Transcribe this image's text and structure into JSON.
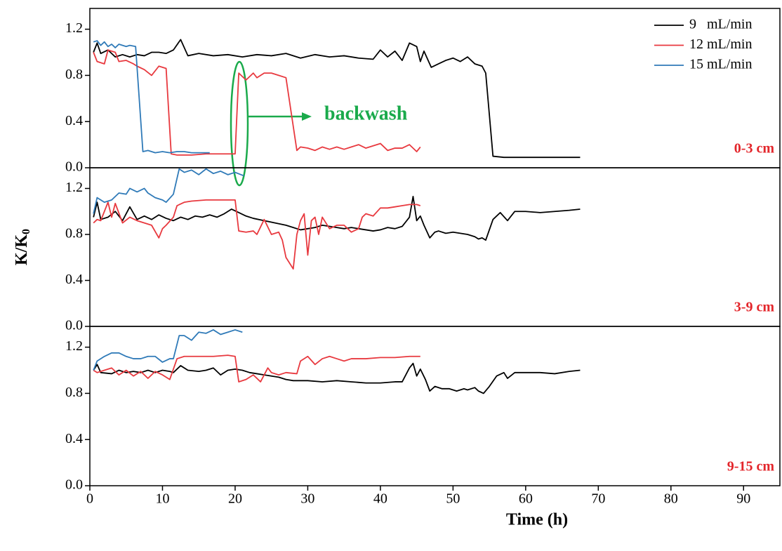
{
  "shared_axes": {
    "xlabel": "Time (h)",
    "ylabel": {
      "text": "K/K",
      "subscript": "0"
    },
    "xlim": [
      0,
      95
    ],
    "xticks": [
      0,
      10,
      20,
      30,
      40,
      50,
      60,
      70,
      80,
      90
    ]
  },
  "chart_data": [
    {
      "type": "line",
      "panel_label": "0-3 cm",
      "annotation": "backwash",
      "legend": "top-right",
      "ylim": [
        0,
        1.38
      ],
      "yticks": [
        {
          "value": 0,
          "label": "0.0"
        },
        {
          "value": 0.4,
          "label": "0.4"
        },
        {
          "value": 0.8,
          "label": "0.8"
        },
        {
          "value": 1.2,
          "label": "1.2"
        }
      ],
      "series": [
        {
          "name": "9   mL/min",
          "color": "#000000",
          "x": [
            0.5,
            1,
            1.5,
            2.5,
            3.5,
            4.5,
            5.5,
            6.5,
            7.5,
            8.5,
            9.5,
            10.5,
            11.5,
            12.5,
            13.5,
            15,
            17,
            19,
            21,
            23,
            25,
            27,
            29,
            31,
            33,
            35,
            37,
            39,
            40,
            41,
            42,
            43,
            44,
            45,
            45.5,
            46,
            47,
            48,
            49,
            50,
            51,
            52,
            53,
            54,
            54.5,
            55.5,
            57,
            59,
            61,
            63,
            65,
            67.5
          ],
          "values": [
            1.0,
            1.08,
            0.99,
            1.02,
            0.96,
            0.98,
            0.96,
            0.98,
            0.97,
            1.0,
            1.0,
            0.99,
            1.02,
            1.11,
            0.97,
            0.99,
            0.97,
            0.98,
            0.96,
            0.98,
            0.97,
            0.99,
            0.95,
            0.98,
            0.96,
            0.97,
            0.95,
            0.94,
            1.02,
            0.96,
            1.01,
            0.93,
            1.08,
            1.05,
            0.92,
            1.01,
            0.87,
            0.9,
            0.93,
            0.95,
            0.92,
            0.96,
            0.9,
            0.88,
            0.82,
            0.1,
            0.09,
            0.09,
            0.09,
            0.09,
            0.09,
            0.09
          ]
        },
        {
          "name": "12 mL/min",
          "color": "#e8393f",
          "x": [
            0.5,
            1,
            2,
            2.5,
            3.5,
            4,
            5,
            6,
            6.5,
            7.5,
            8.5,
            9.5,
            10.5,
            11.2,
            12,
            14,
            16,
            18,
            20,
            20.5,
            21.5,
            22.5,
            23,
            24,
            25,
            26,
            27,
            28.5,
            29,
            30,
            31,
            32,
            33,
            34,
            35,
            36,
            37,
            38,
            39,
            40,
            41,
            42,
            43,
            44,
            45,
            45.5
          ],
          "values": [
            1.0,
            0.92,
            0.9,
            1.02,
            1.0,
            0.92,
            0.93,
            0.9,
            0.88,
            0.85,
            0.8,
            0.88,
            0.86,
            0.12,
            0.11,
            0.11,
            0.12,
            0.12,
            0.12,
            0.82,
            0.76,
            0.82,
            0.78,
            0.82,
            0.82,
            0.8,
            0.78,
            0.15,
            0.18,
            0.17,
            0.15,
            0.18,
            0.16,
            0.18,
            0.16,
            0.18,
            0.2,
            0.17,
            0.19,
            0.21,
            0.15,
            0.17,
            0.17,
            0.2,
            0.14,
            0.18
          ]
        },
        {
          "name": "15 mL/min",
          "color": "#2f7ab8",
          "x": [
            0.5,
            1,
            1.5,
            2,
            2.5,
            3,
            3.5,
            4,
            5,
            5.5,
            6.3,
            7.3,
            8,
            9,
            10,
            11,
            12,
            13,
            14,
            15,
            16.5
          ],
          "values": [
            1.09,
            1.1,
            1.06,
            1.09,
            1.05,
            1.07,
            1.04,
            1.07,
            1.05,
            1.06,
            1.05,
            0.14,
            0.15,
            0.13,
            0.14,
            0.13,
            0.14,
            0.14,
            0.13,
            0.13,
            0.13
          ]
        }
      ]
    },
    {
      "type": "line",
      "panel_label": "3-9 cm",
      "ylim": [
        0,
        1.38
      ],
      "yticks": [
        {
          "value": 0,
          "label": "0.0"
        },
        {
          "value": 0.4,
          "label": "0.4"
        },
        {
          "value": 0.8,
          "label": "0.8"
        },
        {
          "value": 1.2,
          "label": "1.2"
        }
      ],
      "series": [
        {
          "name": "9   mL/min",
          "color": "#000000",
          "x": [
            0.5,
            1,
            1.5,
            2.5,
            3.5,
            4.5,
            5.5,
            6.5,
            7.5,
            8.5,
            9.5,
            10.5,
            11.5,
            12.5,
            13.5,
            14.5,
            15.5,
            16.5,
            17.5,
            18.5,
            19.5,
            20.5,
            21.5,
            22.5,
            24,
            25.5,
            27,
            28,
            29,
            30,
            31,
            32,
            33,
            34,
            35,
            36,
            37,
            38,
            39,
            40,
            41,
            42,
            43,
            44,
            44.5,
            45,
            45.5,
            46,
            46.8,
            47.5,
            48,
            49,
            50,
            51,
            52,
            53,
            53.5,
            54,
            54.5,
            55.5,
            56.5,
            57.5,
            58.5,
            60,
            62,
            64,
            66,
            67.5
          ],
          "values": [
            0.95,
            1.08,
            0.93,
            0.95,
            1.0,
            0.92,
            1.04,
            0.93,
            0.96,
            0.93,
            0.97,
            0.94,
            0.92,
            0.95,
            0.93,
            0.96,
            0.95,
            0.97,
            0.95,
            0.98,
            1.02,
            0.99,
            0.96,
            0.94,
            0.92,
            0.9,
            0.88,
            0.86,
            0.84,
            0.85,
            0.86,
            0.88,
            0.87,
            0.86,
            0.85,
            0.86,
            0.85,
            0.84,
            0.83,
            0.84,
            0.86,
            0.85,
            0.87,
            0.95,
            1.13,
            0.92,
            0.96,
            0.88,
            0.77,
            0.82,
            0.83,
            0.81,
            0.82,
            0.81,
            0.8,
            0.78,
            0.76,
            0.77,
            0.75,
            0.93,
            0.99,
            0.92,
            1.0,
            1.0,
            0.99,
            1.0,
            1.01,
            1.02
          ]
        },
        {
          "name": "12 mL/min",
          "color": "#e8393f",
          "x": [
            0.5,
            1,
            1.5,
            2.5,
            3,
            3.5,
            4.5,
            5.5,
            6.5,
            7.5,
            8.5,
            9.5,
            10,
            10.5,
            11.5,
            12,
            13,
            14,
            16,
            18,
            20,
            20.5,
            21.5,
            22.5,
            23,
            24,
            25,
            26,
            26.5,
            27,
            28,
            28.5,
            29,
            29.5,
            30,
            30.5,
            31,
            31.5,
            32,
            33,
            34,
            35,
            36,
            37,
            37.5,
            38,
            39,
            40,
            41,
            42,
            43,
            44,
            45,
            45.5
          ],
          "values": [
            0.9,
            0.93,
            0.92,
            1.08,
            0.95,
            1.07,
            0.9,
            0.95,
            0.92,
            0.9,
            0.88,
            0.77,
            0.85,
            0.88,
            0.95,
            1.05,
            1.08,
            1.09,
            1.1,
            1.1,
            1.1,
            0.83,
            0.82,
            0.83,
            0.8,
            0.93,
            0.8,
            0.82,
            0.75,
            0.6,
            0.5,
            0.8,
            0.92,
            0.98,
            0.62,
            0.92,
            0.95,
            0.8,
            0.95,
            0.85,
            0.88,
            0.88,
            0.82,
            0.85,
            0.95,
            0.98,
            0.96,
            1.03,
            1.03,
            1.04,
            1.05,
            1.06,
            1.06,
            1.05
          ]
        },
        {
          "name": "15 mL/min",
          "color": "#2f7ab8",
          "x": [
            0.5,
            1,
            1.5,
            2,
            3,
            4,
            5,
            5.5,
            6.5,
            7.5,
            8,
            9,
            10,
            10.5,
            11.5,
            12.3,
            13,
            14,
            15,
            16,
            17,
            18,
            19,
            20,
            21.2
          ],
          "values": [
            0.98,
            1.12,
            1.1,
            1.08,
            1.1,
            1.16,
            1.15,
            1.2,
            1.17,
            1.2,
            1.16,
            1.12,
            1.1,
            1.08,
            1.15,
            1.37,
            1.34,
            1.36,
            1.32,
            1.37,
            1.33,
            1.35,
            1.32,
            1.34,
            1.31
          ]
        }
      ]
    },
    {
      "type": "line",
      "panel_label": "9-15 cm",
      "ylim": [
        0,
        1.38
      ],
      "yticks": [
        {
          "value": 0,
          "label": "0.0"
        },
        {
          "value": 0.4,
          "label": "0.4"
        },
        {
          "value": 0.8,
          "label": "0.8"
        },
        {
          "value": 1.2,
          "label": "1.2"
        }
      ],
      "series": [
        {
          "name": "9   mL/min",
          "color": "#000000",
          "x": [
            0.5,
            1,
            1.5,
            3,
            4,
            5,
            6,
            7,
            8,
            9,
            10,
            11,
            11.5,
            12.5,
            13.5,
            15,
            16,
            17,
            18,
            19,
            20,
            21,
            22,
            23,
            24,
            25,
            26,
            27,
            28,
            30,
            32,
            34,
            36,
            38,
            40,
            42,
            43,
            44,
            44.5,
            45,
            45.5,
            46.2,
            46.8,
            47.5,
            48.5,
            49.5,
            50.5,
            51.5,
            52,
            53,
            53.5,
            54.2,
            55,
            56,
            57,
            57.5,
            58.5,
            60,
            62,
            64,
            66,
            67.5
          ],
          "values": [
            1.0,
            1.05,
            0.98,
            0.97,
            1.0,
            0.98,
            0.99,
            0.98,
            1.0,
            0.98,
            1.0,
            0.99,
            0.98,
            1.04,
            1.0,
            0.99,
            1.0,
            1.02,
            0.96,
            1.0,
            1.01,
            1.0,
            0.98,
            0.97,
            0.96,
            0.95,
            0.94,
            0.92,
            0.91,
            0.91,
            0.9,
            0.91,
            0.9,
            0.89,
            0.89,
            0.9,
            0.9,
            1.02,
            1.06,
            0.95,
            1.01,
            0.92,
            0.82,
            0.86,
            0.84,
            0.84,
            0.82,
            0.84,
            0.83,
            0.85,
            0.82,
            0.8,
            0.86,
            0.95,
            0.98,
            0.93,
            0.98,
            0.98,
            0.98,
            0.97,
            0.99,
            1.0
          ]
        },
        {
          "name": "12 mL/min",
          "color": "#e8393f",
          "x": [
            0.5,
            1,
            2,
            3,
            4,
            5,
            6,
            7,
            8,
            9,
            10,
            11,
            12,
            13,
            15,
            17,
            19,
            20,
            20.5,
            21.5,
            22.5,
            23.5,
            24.5,
            25,
            26,
            27,
            28.5,
            29,
            30,
            31,
            32,
            33,
            34,
            35,
            36,
            38,
            40,
            42,
            44,
            45.5
          ],
          "values": [
            1.0,
            0.98,
            1.0,
            1.02,
            0.96,
            1.0,
            0.95,
            0.99,
            0.93,
            0.99,
            0.96,
            0.92,
            1.1,
            1.12,
            1.12,
            1.12,
            1.13,
            1.12,
            0.9,
            0.92,
            0.96,
            0.9,
            1.02,
            0.98,
            0.96,
            0.98,
            0.97,
            1.08,
            1.12,
            1.05,
            1.1,
            1.12,
            1.1,
            1.08,
            1.1,
            1.1,
            1.11,
            1.11,
            1.12,
            1.12
          ]
        },
        {
          "name": "15 mL/min",
          "color": "#2f7ab8",
          "x": [
            0.5,
            1,
            2,
            3,
            4,
            5,
            6,
            7,
            8,
            9,
            10,
            11,
            11.5,
            12.3,
            13,
            14,
            15,
            16,
            17,
            18,
            19,
            20,
            21
          ],
          "values": [
            1.0,
            1.08,
            1.12,
            1.15,
            1.15,
            1.12,
            1.1,
            1.1,
            1.12,
            1.12,
            1.07,
            1.1,
            1.1,
            1.3,
            1.3,
            1.26,
            1.33,
            1.32,
            1.35,
            1.31,
            1.33,
            1.35,
            1.33
          ]
        }
      ]
    }
  ]
}
